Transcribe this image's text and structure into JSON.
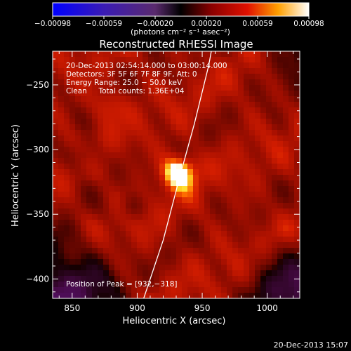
{
  "chart_data": {
    "type": "heatmap",
    "title": "Reconstructed RHESSI Image",
    "xlabel": "Heliocentric X (arcsec)",
    "ylabel": "Heliocentric Y (arcsec)",
    "xlim": [
      835,
      1025
    ],
    "ylim": [
      -415,
      -224
    ],
    "x_ticks": [
      850,
      900,
      950,
      1000
    ],
    "y_ticks": [
      -250,
      -300,
      -350,
      -400
    ],
    "x_tick_labels": [
      "850",
      "900",
      "950",
      "1000"
    ],
    "y_tick_labels": [
      "−250",
      "−300",
      "−350",
      "−400"
    ],
    "colorbar": {
      "min": -0.00098,
      "max": 0.00098,
      "ticks": [
        "−0.00098",
        "−0.00059",
        "−0.00020",
        "0.00020",
        "0.00059",
        "0.00098"
      ],
      "label": "(photons cm⁻² s⁻¹ asec⁻²)"
    },
    "annotations": [
      "20-Dec-2013 02:54:14.000 to 03:00:14.000",
      "Detectors: 3F 5F 6F 7F 8F 9F, Att: 0",
      "Energy Range: 25.0 − 50.0 keV",
      "Clean     Total counts: 1.36E+04"
    ],
    "peak_label": "Position of Peak = [932,−318]",
    "peak": [
      932,
      -318
    ],
    "sources": [
      {
        "x": 932,
        "y": -318,
        "intensity": 0.00098
      },
      {
        "x": 877,
        "y": -266,
        "intensity": 0.00052
      }
    ],
    "limb_curve": [
      [
        905,
        -415
      ],
      [
        920,
        -370
      ],
      [
        933,
        -320
      ],
      [
        944,
        -280
      ],
      [
        955,
        -235
      ],
      [
        957,
        -224
      ]
    ],
    "grid": false
  },
  "footer_date": "20-Dec-2013 15:07"
}
